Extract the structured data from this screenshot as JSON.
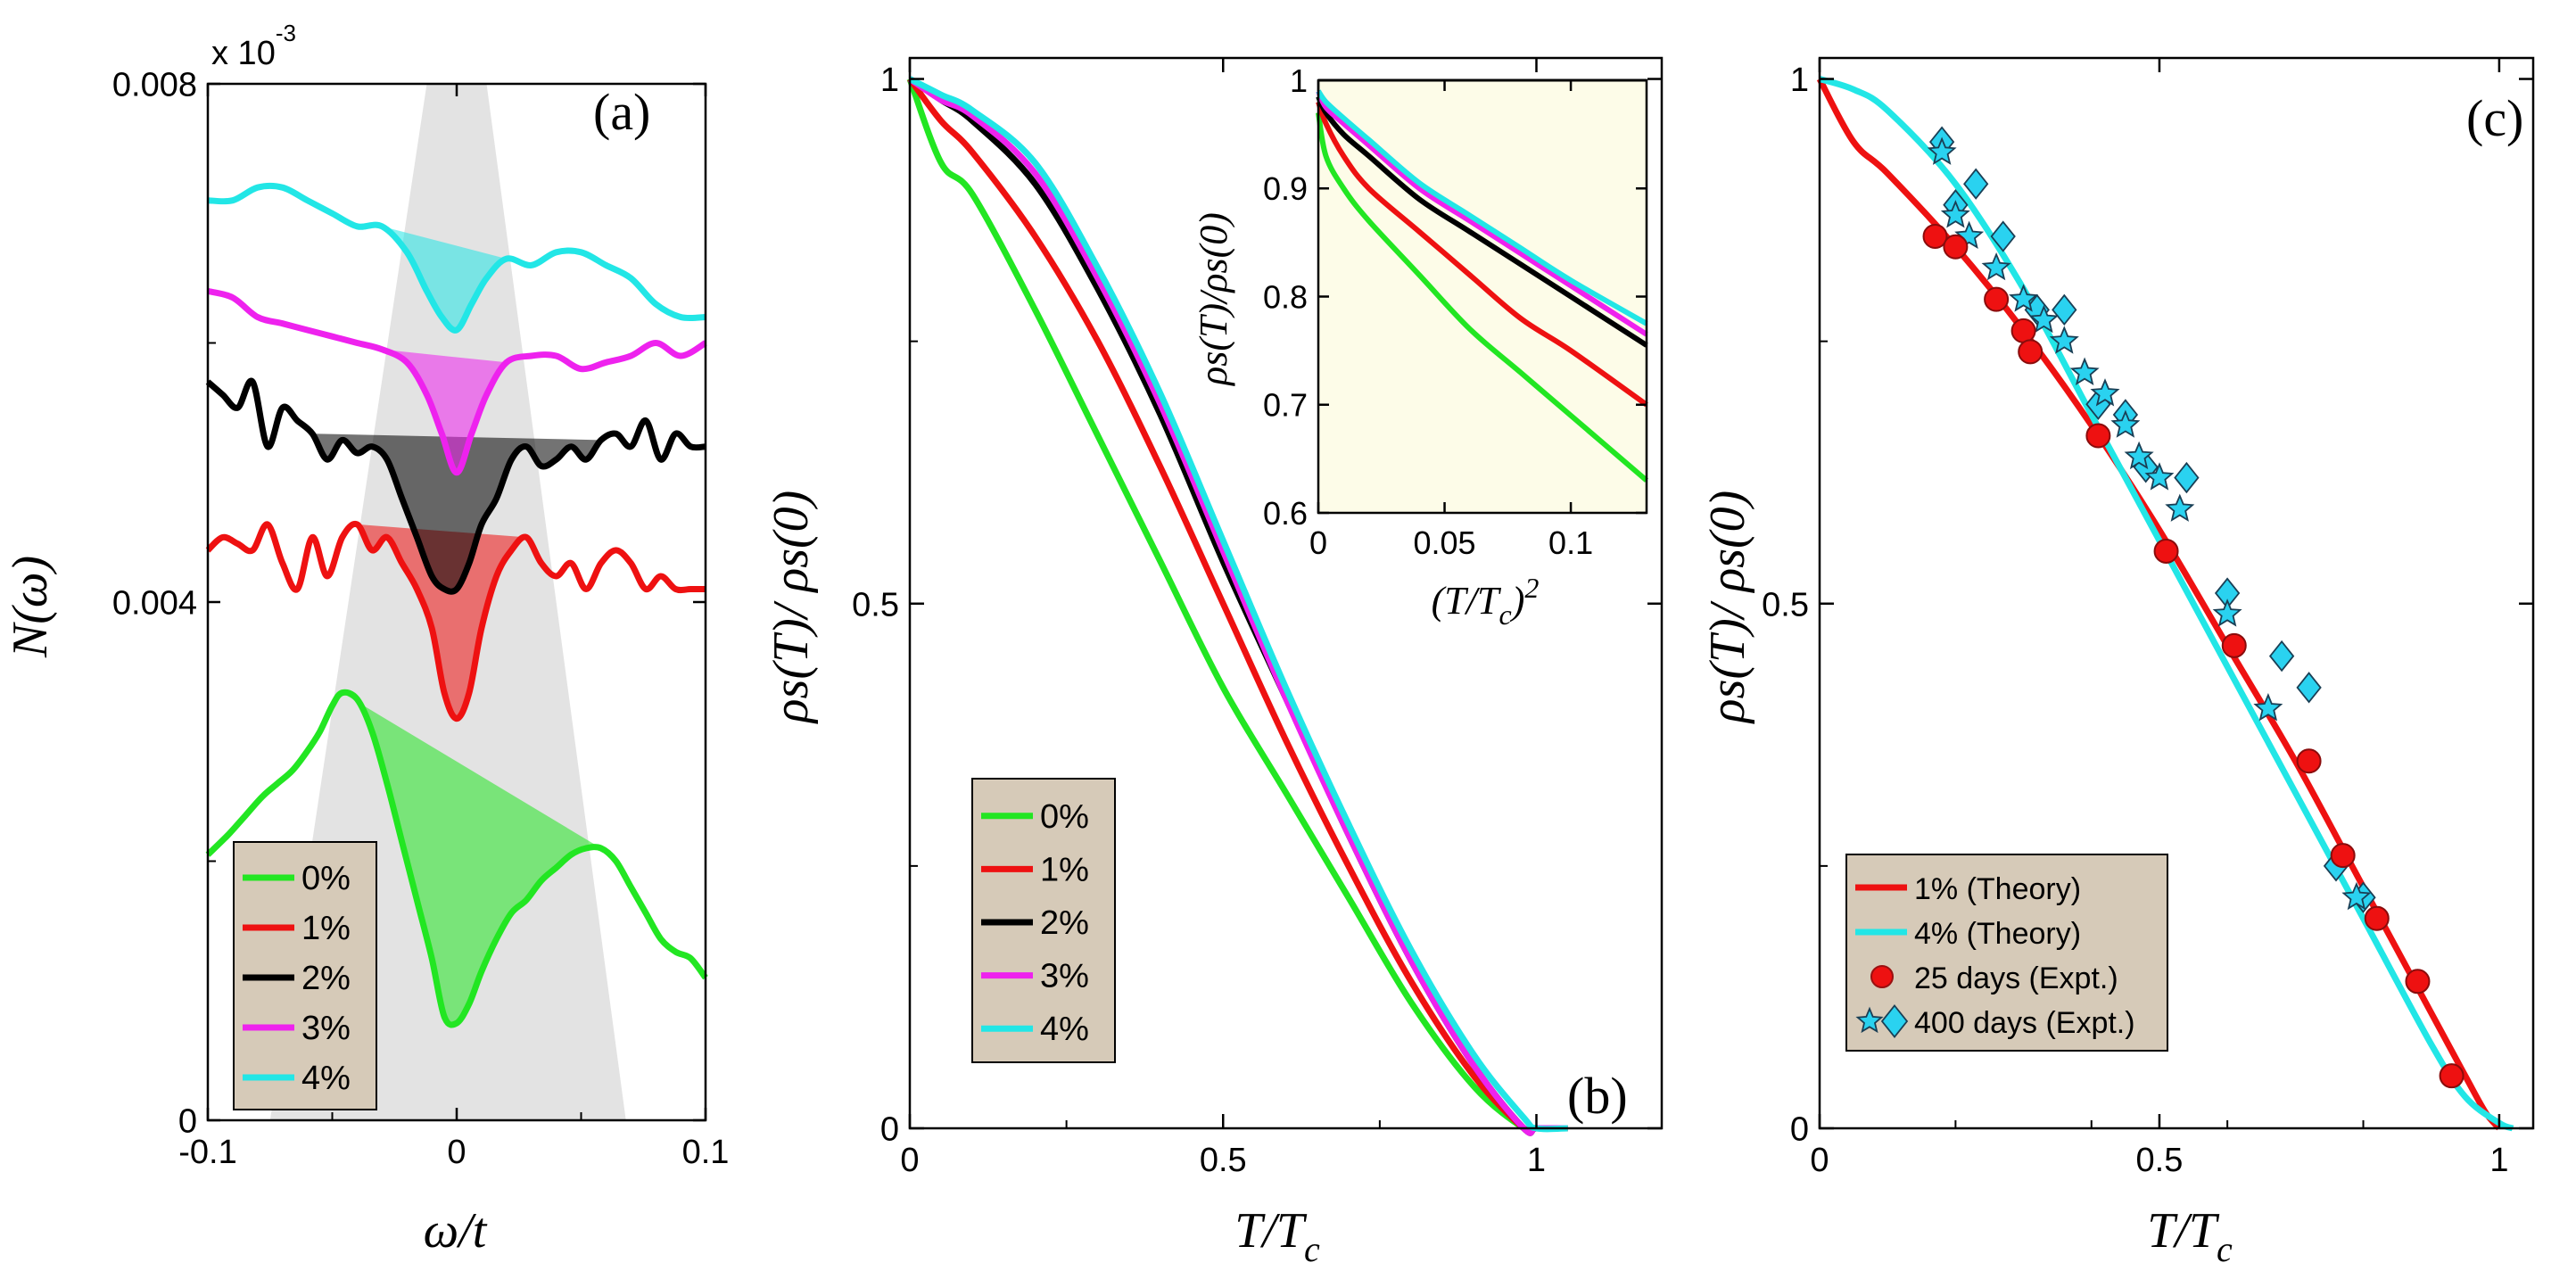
{
  "figure": {
    "colors": {
      "green": "#22e622",
      "red": "#ee1111",
      "black": "#000000",
      "magenta": "#ee22ee",
      "cyan": "#22e6e6",
      "shade": "#e3e3e3",
      "legend_bg": "#d6cab8",
      "inset_bg": "#fdfce8",
      "marker_red": "#ee1111",
      "marker_cyan": "#2ad2f0"
    }
  },
  "chart_data": [
    {
      "panel": "a",
      "type": "line",
      "label": "(a)",
      "xlabel": "ω/t",
      "ylabel": "N(ω)",
      "scale_note": "x 10",
      "scale_exp": "-3",
      "xlim": [
        -0.1,
        0.1
      ],
      "ylim": [
        0,
        0.008
      ],
      "xticks": [
        "-0.1",
        "0",
        "0.1"
      ],
      "yticks": [
        "0",
        "0.004",
        "0.008"
      ],
      "legend": [
        "0%",
        "1%",
        "2%",
        "3%",
        "4%"
      ],
      "series": [
        {
          "name": "0%",
          "x": [
            -0.1,
            -0.092,
            -0.085,
            -0.078,
            -0.072,
            -0.066,
            -0.06,
            -0.055,
            -0.05,
            -0.046,
            -0.04,
            -0.034,
            -0.028,
            -0.022,
            -0.016,
            -0.01,
            -0.005,
            0,
            0.005,
            0.01,
            0.016,
            0.022,
            0.028,
            0.034,
            0.04,
            0.046,
            0.052,
            0.058,
            0.064,
            0.07,
            0.076,
            0.082,
            0.088,
            0.094,
            0.1
          ],
          "y": [
            0.00205,
            0.0022,
            0.00235,
            0.0025,
            0.0026,
            0.0027,
            0.00285,
            0.003,
            0.0032,
            0.0033,
            0.00325,
            0.003,
            0.0026,
            0.00215,
            0.0017,
            0.00125,
            0.0008,
            0.00075,
            0.0009,
            0.00115,
            0.0014,
            0.0016,
            0.0017,
            0.00185,
            0.00195,
            0.00205,
            0.0021,
            0.0021,
            0.002,
            0.0018,
            0.0016,
            0.0014,
            0.0013,
            0.00125,
            0.0011
          ]
        },
        {
          "name": "1%",
          "x": [
            -0.1,
            -0.094,
            -0.088,
            -0.082,
            -0.076,
            -0.07,
            -0.064,
            -0.058,
            -0.052,
            -0.046,
            -0.04,
            -0.034,
            -0.028,
            -0.022,
            -0.016,
            -0.01,
            -0.005,
            0,
            0.005,
            0.01,
            0.016,
            0.022,
            0.028,
            0.034,
            0.04,
            0.046,
            0.052,
            0.058,
            0.064,
            0.07,
            0.076,
            0.082,
            0.088,
            0.094,
            0.1
          ],
          "y": [
            0.0044,
            0.0045,
            0.00445,
            0.0044,
            0.0046,
            0.0043,
            0.0041,
            0.0045,
            0.0042,
            0.0045,
            0.0046,
            0.0044,
            0.0045,
            0.0043,
            0.0041,
            0.0038,
            0.0033,
            0.0031,
            0.0033,
            0.0038,
            0.0042,
            0.0044,
            0.0045,
            0.0043,
            0.0042,
            0.0043,
            0.0041,
            0.0043,
            0.0044,
            0.0043,
            0.0041,
            0.0042,
            0.0041,
            0.0041,
            0.0041
          ]
        },
        {
          "name": "2%",
          "x": [
            -0.1,
            -0.094,
            -0.088,
            -0.082,
            -0.076,
            -0.07,
            -0.064,
            -0.058,
            -0.052,
            -0.046,
            -0.04,
            -0.034,
            -0.028,
            -0.022,
            -0.016,
            -0.01,
            -0.005,
            0,
            0.005,
            0.01,
            0.016,
            0.022,
            0.028,
            0.034,
            0.04,
            0.046,
            0.052,
            0.058,
            0.064,
            0.07,
            0.076,
            0.082,
            0.088,
            0.094,
            0.1
          ],
          "y": [
            0.0057,
            0.0056,
            0.0055,
            0.0057,
            0.0052,
            0.0055,
            0.0054,
            0.0053,
            0.0051,
            0.00525,
            0.00515,
            0.0052,
            0.0051,
            0.0048,
            0.0045,
            0.0042,
            0.0041,
            0.0041,
            0.0043,
            0.0046,
            0.0048,
            0.0051,
            0.0052,
            0.00505,
            0.0051,
            0.0052,
            0.0051,
            0.00525,
            0.0053,
            0.0052,
            0.0054,
            0.0051,
            0.0053,
            0.0052,
            0.0052
          ]
        },
        {
          "name": "3%",
          "x": [
            -0.1,
            -0.09,
            -0.08,
            -0.07,
            -0.06,
            -0.05,
            -0.04,
            -0.03,
            -0.02,
            -0.012,
            -0.006,
            0,
            0.006,
            0.012,
            0.02,
            0.03,
            0.04,
            0.05,
            0.06,
            0.07,
            0.08,
            0.09,
            0.1
          ],
          "y": [
            0.0064,
            0.00635,
            0.0062,
            0.00615,
            0.0061,
            0.00605,
            0.006,
            0.00595,
            0.00585,
            0.0056,
            0.0053,
            0.005,
            0.0053,
            0.0056,
            0.00585,
            0.0059,
            0.0059,
            0.0058,
            0.00585,
            0.0059,
            0.006,
            0.0059,
            0.006
          ]
        },
        {
          "name": "4%",
          "x": [
            -0.1,
            -0.09,
            -0.08,
            -0.07,
            -0.06,
            -0.05,
            -0.04,
            -0.03,
            -0.02,
            -0.012,
            -0.006,
            0,
            0.006,
            0.012,
            0.02,
            0.03,
            0.04,
            0.05,
            0.06,
            0.07,
            0.08,
            0.09,
            0.1
          ],
          "y": [
            0.0071,
            0.0071,
            0.0072,
            0.0072,
            0.0071,
            0.007,
            0.0069,
            0.0069,
            0.0067,
            0.0064,
            0.0062,
            0.0061,
            0.0063,
            0.0065,
            0.00665,
            0.0066,
            0.0067,
            0.0067,
            0.0066,
            0.0065,
            0.0063,
            0.0062,
            0.0062
          ]
        }
      ]
    },
    {
      "panel": "b",
      "type": "line",
      "label": "(b)",
      "xlabel": "T/T",
      "xlabel_sub": "c",
      "ylabel": "ρs(T)/ ρs(0)",
      "xlim": [
        0,
        1.2
      ],
      "ylim": [
        0,
        1.02
      ],
      "xticks": [
        "0",
        "0.5",
        "1"
      ],
      "yticks": [
        "0",
        "0.5",
        "1"
      ],
      "legend": [
        "0%",
        "1%",
        "2%",
        "3%",
        "4%"
      ],
      "series": [
        {
          "name": "0%",
          "x": [
            0,
            0.05,
            0.1,
            0.2,
            0.3,
            0.4,
            0.5,
            0.6,
            0.7,
            0.8,
            0.9,
            0.98,
            1.0,
            1.05
          ],
          "y": [
            1.0,
            0.92,
            0.89,
            0.78,
            0.66,
            0.54,
            0.42,
            0.32,
            0.22,
            0.12,
            0.04,
            0.0,
            0.0,
            0.0
          ]
        },
        {
          "name": "1%",
          "x": [
            0,
            0.05,
            0.1,
            0.2,
            0.3,
            0.4,
            0.5,
            0.6,
            0.7,
            0.8,
            0.9,
            0.98,
            1.0,
            1.05
          ],
          "y": [
            1.0,
            0.96,
            0.93,
            0.85,
            0.75,
            0.63,
            0.5,
            0.37,
            0.25,
            0.14,
            0.05,
            0.0,
            0.0,
            0.0
          ]
        },
        {
          "name": "2%",
          "x": [
            0,
            0.05,
            0.1,
            0.2,
            0.3,
            0.4,
            0.5,
            0.6,
            0.7,
            0.8,
            0.9,
            0.98,
            1.0,
            1.05
          ],
          "y": [
            1.0,
            0.98,
            0.96,
            0.9,
            0.8,
            0.68,
            0.54,
            0.41,
            0.28,
            0.16,
            0.06,
            0.0,
            0.0,
            0.0
          ]
        },
        {
          "name": "3%",
          "x": [
            0,
            0.05,
            0.1,
            0.2,
            0.3,
            0.4,
            0.5,
            0.6,
            0.7,
            0.8,
            0.9,
            0.98,
            1.0,
            1.05
          ],
          "y": [
            1.0,
            0.98,
            0.965,
            0.91,
            0.81,
            0.69,
            0.55,
            0.41,
            0.28,
            0.16,
            0.06,
            0.0,
            0.0,
            0.0
          ]
        },
        {
          "name": "4%",
          "x": [
            0,
            0.05,
            0.1,
            0.2,
            0.3,
            0.4,
            0.5,
            0.6,
            0.7,
            0.8,
            0.9,
            0.98,
            1.0,
            1.05
          ],
          "y": [
            1.0,
            0.985,
            0.97,
            0.92,
            0.82,
            0.7,
            0.56,
            0.42,
            0.29,
            0.17,
            0.07,
            0.01,
            0.0,
            0.0
          ]
        }
      ],
      "inset": {
        "type": "line",
        "xlabel": "(T/T",
        "xlabel_sub": "c",
        "xlabel_tail": ")",
        "xlabel_sup": "2",
        "ylabel": "ρs(T)/ρs(0)",
        "xlim": [
          0,
          0.13
        ],
        "ylim": [
          0.6,
          1.0
        ],
        "xticks": [
          "0",
          "0.05",
          "0.1"
        ],
        "yticks": [
          "0.6",
          "0.7",
          "0.8",
          "0.9",
          "1"
        ],
        "series": [
          {
            "name": "0%",
            "x": [
              0,
              0.003,
              0.01,
              0.02,
              0.04,
              0.06,
              0.08,
              0.1,
              0.13
            ],
            "y": [
              0.97,
              0.93,
              0.9,
              0.87,
              0.82,
              0.77,
              0.73,
              0.69,
              0.63
            ]
          },
          {
            "name": "1%",
            "x": [
              0,
              0.003,
              0.01,
              0.02,
              0.04,
              0.06,
              0.08,
              0.1,
              0.13
            ],
            "y": [
              0.98,
              0.96,
              0.93,
              0.9,
              0.86,
              0.82,
              0.78,
              0.75,
              0.7
            ]
          },
          {
            "name": "2%",
            "x": [
              0,
              0.003,
              0.01,
              0.02,
              0.04,
              0.06,
              0.08,
              0.1,
              0.13
            ],
            "y": [
              0.985,
              0.97,
              0.95,
              0.93,
              0.89,
              0.86,
              0.83,
              0.8,
              0.755
            ]
          },
          {
            "name": "3%",
            "x": [
              0,
              0.003,
              0.01,
              0.02,
              0.04,
              0.06,
              0.08,
              0.1,
              0.13
            ],
            "y": [
              0.99,
              0.975,
              0.96,
              0.94,
              0.9,
              0.87,
              0.84,
              0.81,
              0.765
            ]
          },
          {
            "name": "4%",
            "x": [
              0,
              0.003,
              0.01,
              0.02,
              0.04,
              0.06,
              0.08,
              0.1,
              0.13
            ],
            "y": [
              0.99,
              0.98,
              0.965,
              0.945,
              0.905,
              0.875,
              0.845,
              0.815,
              0.775
            ]
          }
        ]
      }
    },
    {
      "panel": "c",
      "type": "scatter",
      "label": "(c)",
      "xlabel": "T/T",
      "xlabel_sub": "c",
      "ylabel": "ρs(T)/ ρs(0)",
      "xlim": [
        0,
        1.05
      ],
      "ylim": [
        0,
        1.02
      ],
      "xticks": [
        "0",
        "0.5",
        "1"
      ],
      "yticks": [
        "0",
        "0.5",
        "1"
      ],
      "legend": [
        "1% (Theory)",
        "4% (Theory)",
        "25 days (Expt.)",
        "400 days (Expt.)"
      ],
      "theory": [
        {
          "name": "1% (Theory)",
          "x": [
            0,
            0.05,
            0.1,
            0.2,
            0.3,
            0.4,
            0.5,
            0.6,
            0.7,
            0.8,
            0.9,
            0.95,
            0.98,
            1.0
          ],
          "y": [
            1.0,
            0.94,
            0.91,
            0.84,
            0.76,
            0.67,
            0.57,
            0.46,
            0.35,
            0.23,
            0.11,
            0.05,
            0.015,
            0.0
          ]
        },
        {
          "name": "4% (Theory)",
          "x": [
            0,
            0.05,
            0.1,
            0.2,
            0.3,
            0.4,
            0.5,
            0.6,
            0.7,
            0.8,
            0.9,
            0.95,
            1.0,
            1.02
          ],
          "y": [
            1.0,
            0.99,
            0.97,
            0.9,
            0.8,
            0.68,
            0.56,
            0.44,
            0.32,
            0.2,
            0.08,
            0.03,
            0.005,
            0.0
          ]
        }
      ],
      "expt_25_days": {
        "x": [
          0.17,
          0.2,
          0.26,
          0.3,
          0.31,
          0.41,
          0.51,
          0.61,
          0.72,
          0.77,
          0.82,
          0.88,
          0.93
        ],
        "y": [
          0.85,
          0.84,
          0.79,
          0.76,
          0.74,
          0.66,
          0.55,
          0.46,
          0.35,
          0.26,
          0.2,
          0.14,
          0.05
        ]
      },
      "expt_400_days_stars": {
        "x": [
          0.18,
          0.2,
          0.22,
          0.26,
          0.3,
          0.33,
          0.36,
          0.39,
          0.42,
          0.45,
          0.47,
          0.5,
          0.53,
          0.6,
          0.66,
          0.79
        ],
        "y": [
          0.93,
          0.87,
          0.85,
          0.82,
          0.79,
          0.77,
          0.75,
          0.72,
          0.7,
          0.67,
          0.64,
          0.62,
          0.59,
          0.49,
          0.4,
          0.22
        ]
      },
      "expt_400_days_diamonds": {
        "x": [
          0.18,
          0.2,
          0.23,
          0.27,
          0.32,
          0.36,
          0.41,
          0.45,
          0.48,
          0.54,
          0.6,
          0.68,
          0.72,
          0.76,
          0.8
        ],
        "y": [
          0.94,
          0.88,
          0.9,
          0.85,
          0.78,
          0.78,
          0.69,
          0.68,
          0.63,
          0.62,
          0.51,
          0.45,
          0.42,
          0.25,
          0.22
        ]
      }
    }
  ]
}
